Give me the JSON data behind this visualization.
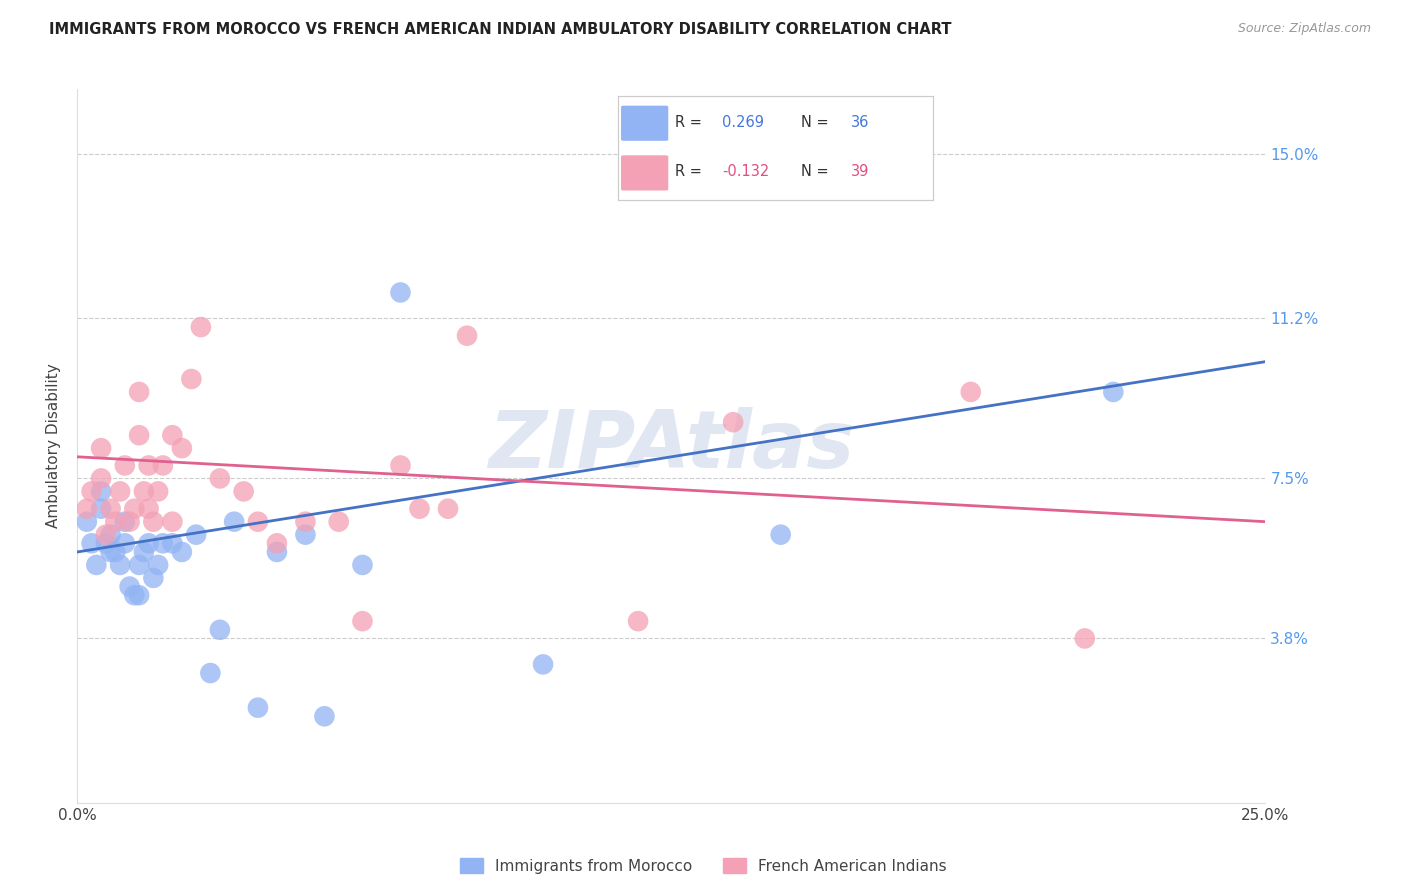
{
  "title": "IMMIGRANTS FROM MOROCCO VS FRENCH AMERICAN INDIAN AMBULATORY DISABILITY CORRELATION CHART",
  "source": "Source: ZipAtlas.com",
  "ylabel": "Ambulatory Disability",
  "ytick_labels": [
    "15.0%",
    "11.2%",
    "7.5%",
    "3.8%"
  ],
  "ytick_values": [
    0.15,
    0.112,
    0.075,
    0.038
  ],
  "xlim": [
    0.0,
    0.25
  ],
  "ylim": [
    0.0,
    0.165
  ],
  "bottom_legend_blue": "Immigrants from Morocco",
  "bottom_legend_pink": "French American Indians",
  "blue_color": "#92b4f4",
  "pink_color": "#f4a0b5",
  "blue_line_color": "#4472c4",
  "pink_line_color": "#e06090",
  "watermark": "ZIPAtlas",
  "blue_scatter_x": [
    0.002,
    0.003,
    0.004,
    0.005,
    0.005,
    0.006,
    0.007,
    0.007,
    0.008,
    0.009,
    0.01,
    0.01,
    0.011,
    0.012,
    0.013,
    0.013,
    0.014,
    0.015,
    0.016,
    0.017,
    0.018,
    0.02,
    0.022,
    0.025,
    0.028,
    0.03,
    0.033,
    0.038,
    0.042,
    0.048,
    0.052,
    0.06,
    0.068,
    0.098,
    0.148,
    0.218
  ],
  "blue_scatter_y": [
    0.065,
    0.06,
    0.055,
    0.068,
    0.072,
    0.06,
    0.058,
    0.062,
    0.058,
    0.055,
    0.06,
    0.065,
    0.05,
    0.048,
    0.048,
    0.055,
    0.058,
    0.06,
    0.052,
    0.055,
    0.06,
    0.06,
    0.058,
    0.062,
    0.03,
    0.04,
    0.065,
    0.022,
    0.058,
    0.062,
    0.02,
    0.055,
    0.118,
    0.032,
    0.062,
    0.095
  ],
  "pink_scatter_x": [
    0.002,
    0.003,
    0.005,
    0.005,
    0.006,
    0.007,
    0.008,
    0.009,
    0.01,
    0.011,
    0.012,
    0.013,
    0.013,
    0.014,
    0.015,
    0.015,
    0.016,
    0.017,
    0.018,
    0.02,
    0.02,
    0.022,
    0.024,
    0.026,
    0.03,
    0.035,
    0.038,
    0.042,
    0.048,
    0.055,
    0.06,
    0.068,
    0.072,
    0.078,
    0.082,
    0.118,
    0.138,
    0.188,
    0.212
  ],
  "pink_scatter_y": [
    0.068,
    0.072,
    0.075,
    0.082,
    0.062,
    0.068,
    0.065,
    0.072,
    0.078,
    0.065,
    0.068,
    0.085,
    0.095,
    0.072,
    0.068,
    0.078,
    0.065,
    0.072,
    0.078,
    0.065,
    0.085,
    0.082,
    0.098,
    0.11,
    0.075,
    0.072,
    0.065,
    0.06,
    0.065,
    0.065,
    0.042,
    0.078,
    0.068,
    0.068,
    0.108,
    0.042,
    0.088,
    0.095,
    0.038
  ],
  "blue_line_x0": 0.0,
  "blue_line_y0": 0.058,
  "blue_line_x1": 0.25,
  "blue_line_y1": 0.102,
  "pink_line_x0": 0.0,
  "pink_line_y0": 0.08,
  "pink_line_x1": 0.25,
  "pink_line_y1": 0.065,
  "legend_blue_r": "R = ",
  "legend_blue_rval": " 0.269",
  "legend_blue_n": "  N = ",
  "legend_blue_nval": "36",
  "legend_pink_r": "R = ",
  "legend_pink_rval": "-0.132",
  "legend_pink_n": "  N = ",
  "legend_pink_nval": "39"
}
